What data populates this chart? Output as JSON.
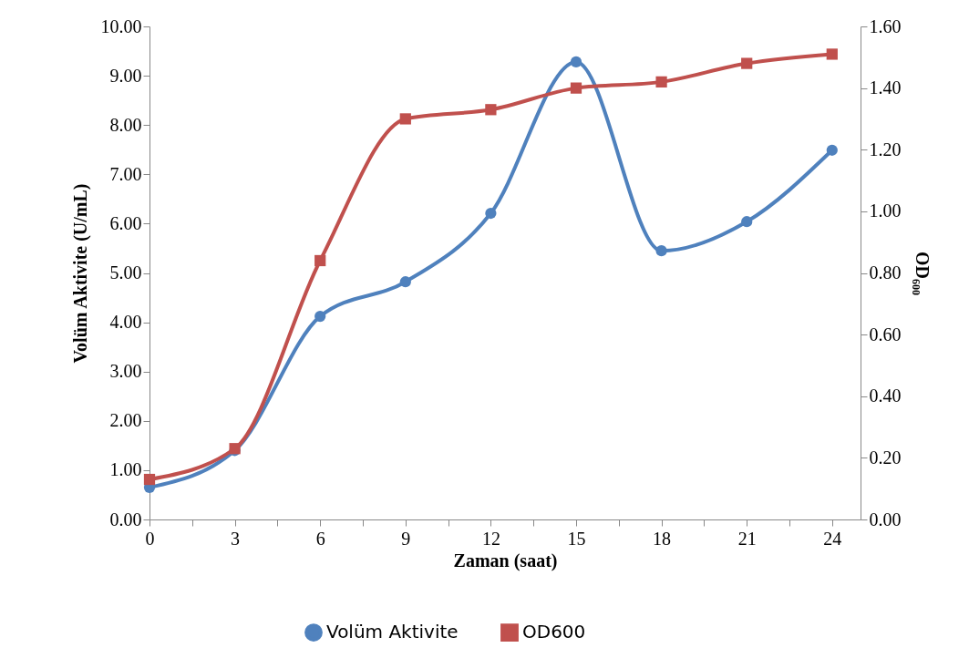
{
  "chart_data": {
    "type": "line",
    "xlabel": "Zaman (saat)",
    "ylabel": "Volüm Aktivite (U/mL)",
    "y2label": "OD₆₀₀",
    "x": [
      0,
      3,
      6,
      9,
      12,
      15,
      18,
      21,
      24
    ],
    "series": [
      {
        "name": "Volüm Aktivite",
        "color": "#4f81bd",
        "marker": "circle",
        "values": [
          0.65,
          1.4,
          4.12,
          4.82,
          6.21,
          9.28,
          5.45,
          6.04,
          7.49
        ]
      },
      {
        "name": "OD600",
        "color": "#c0504d",
        "marker": "square",
        "axis": "y2",
        "values": [
          0.13,
          0.23,
          0.84,
          1.3,
          1.33,
          1.4,
          1.42,
          1.48,
          1.51
        ]
      }
    ],
    "xlim": [
      0,
      25
    ],
    "xticks": [
      0,
      {
        "value": 1.5,
        "label": null
      },
      3,
      {
        "value": 4.5,
        "label": null
      },
      6,
      {
        "value": 7.5,
        "label": null
      },
      9,
      {
        "value": 10.5,
        "label": null
      },
      12,
      {
        "value": 13.5,
        "label": null
      },
      15,
      {
        "value": 16.5,
        "label": null
      },
      18,
      {
        "value": 19.5,
        "label": null
      },
      21,
      {
        "value": 22.5,
        "label": null
      },
      24
    ],
    "ylim": [
      0,
      10
    ],
    "yticks": [
      {
        "value": 0,
        "label": "0.00"
      },
      {
        "value": 1,
        "label": "1.00"
      },
      {
        "value": 2,
        "label": "2.00"
      },
      {
        "value": 3,
        "label": "3.00"
      },
      {
        "value": 4,
        "label": "4.00"
      },
      {
        "value": 5,
        "label": "5.00"
      },
      {
        "value": 6,
        "label": "6.00"
      },
      {
        "value": 7,
        "label": "7.00"
      },
      {
        "value": 8,
        "label": "8.00"
      },
      {
        "value": 9,
        "label": "9.00"
      },
      {
        "value": 10,
        "label": "10.00"
      }
    ],
    "y2lim": [
      0,
      1.6
    ],
    "y2ticks": [
      {
        "value": 0,
        "label": "0.00"
      },
      {
        "value": 0.2,
        "label": "0.20"
      },
      {
        "value": 0.4,
        "label": "0.40"
      },
      {
        "value": 0.6,
        "label": "0.60"
      },
      {
        "value": 0.8,
        "label": "0.80"
      },
      {
        "value": 1,
        "label": "1.00"
      },
      {
        "value": 1.2,
        "label": "1.20"
      },
      {
        "value": 1.4,
        "label": "1.40"
      },
      {
        "value": 1.6,
        "label": "1.60"
      }
    ],
    "grid": false,
    "legend": "bottom",
    "line_style": "solid"
  }
}
